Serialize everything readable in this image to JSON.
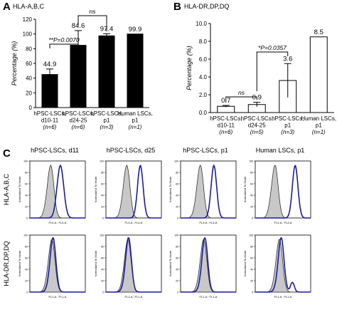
{
  "panel_letters": {
    "A": "A",
    "B": "B",
    "C": "C"
  },
  "colors": {
    "bar_black": "#000000",
    "isotype_fill": "#c8c8c8",
    "stain_line": "#1a1aa0",
    "iso_line": "#333333"
  },
  "chart_data": [
    {
      "type": "bar",
      "title": "HLA-A,B,C",
      "ylabel": "Percentage (%)",
      "ylim": [
        0,
        120
      ],
      "yticks": [
        "0",
        "20",
        "40",
        "60",
        "80",
        "100",
        "120"
      ],
      "categories": [
        [
          "hPSC-LSCs,",
          "d10-11",
          "(n=6)"
        ],
        [
          "hPSC-LSCs,",
          "d24-25",
          "(n=6)"
        ],
        [
          "hPSC-LSCs,",
          "p1",
          "(n=3)"
        ],
        [
          "Human LSCs,",
          "p1",
          "(n=1)"
        ]
      ],
      "values": [
        44.9,
        84.6,
        97.4,
        99.9
      ],
      "errors": [
        7.5,
        20,
        3,
        0
      ],
      "value_labels": [
        "44.9",
        "84.6",
        "97.4",
        "99.9"
      ],
      "bar_style": "filled-black",
      "annotations": [
        {
          "text": "**P=0.0070",
          "from": 0,
          "to": 1
        },
        {
          "text": "ns",
          "from": 1,
          "to": 2
        }
      ]
    },
    {
      "type": "bar",
      "title": "HLA-DR,DP,DQ",
      "ylabel": "Percentage (%)",
      "ylim": [
        0,
        10
      ],
      "yticks": [
        "0.0",
        "2.0",
        "4.0",
        "6.0",
        "8.0",
        "10.0"
      ],
      "categories": [
        [
          "hPSC-LSCs,",
          "d10-11",
          "(n=6)"
        ],
        [
          "hPSC-LSCs,",
          "d24-25",
          "(n=5)"
        ],
        [
          "hPSC-LSCs,",
          "p1",
          "(n=3)"
        ],
        [
          "Human LSCs,",
          "p1",
          "(n=1)"
        ]
      ],
      "values": [
        0.7,
        0.9,
        3.6,
        8.5
      ],
      "errors": [
        0.1,
        0.25,
        1.9,
        0
      ],
      "value_labels": [
        "0.7",
        "0.9",
        "3.6",
        "8.5"
      ],
      "bar_style": "open",
      "annotations": [
        {
          "text": "ns",
          "from": 0,
          "to": 1
        },
        {
          "text": "*P=0.0357",
          "from": 1,
          "to": 2
        }
      ]
    },
    {
      "type": "histogram-grid",
      "column_titles": [
        "hPSC-LSCs, d11",
        "hPSC-LSCs, d25",
        "hPSC-LSCs, p1",
        "Human LSCs, p1"
      ],
      "row_labels": [
        "HLA-A,B,C",
        "HLA-DR,DP,DQ"
      ],
      "ylabel": "Normalized To Mode",
      "xlabel_row1": "FL4-A : FL4-A",
      "xlabel_row2": "FL1-A : FL1-A",
      "series_names": [
        "isotype control (grey filled)",
        "antibody stain (blue line)"
      ],
      "peaks": [
        [
          {
            "iso": 0.38,
            "stain": 0.55,
            "stain_w": 0.06,
            "shoulder": 0.0
          },
          {
            "iso": 0.38,
            "stain": 0.62,
            "stain_w": 0.05,
            "shoulder": 0.0
          },
          {
            "iso": 0.36,
            "stain": 0.6,
            "stain_w": 0.05,
            "shoulder": 0.0
          },
          {
            "iso": 0.36,
            "stain": 0.72,
            "stain_w": 0.05,
            "shoulder": 0.0
          }
        ],
        [
          {
            "iso": 0.4,
            "stain": 0.42,
            "stain_w": 0.05,
            "shoulder": 0.0
          },
          {
            "iso": 0.4,
            "stain": 0.41,
            "stain_w": 0.05,
            "shoulder": 0.0
          },
          {
            "iso": 0.42,
            "stain": 0.44,
            "stain_w": 0.05,
            "shoulder": 0.0
          },
          {
            "iso": 0.44,
            "stain": 0.47,
            "stain_w": 0.05,
            "shoulder": 0.18
          }
        ]
      ]
    }
  ]
}
